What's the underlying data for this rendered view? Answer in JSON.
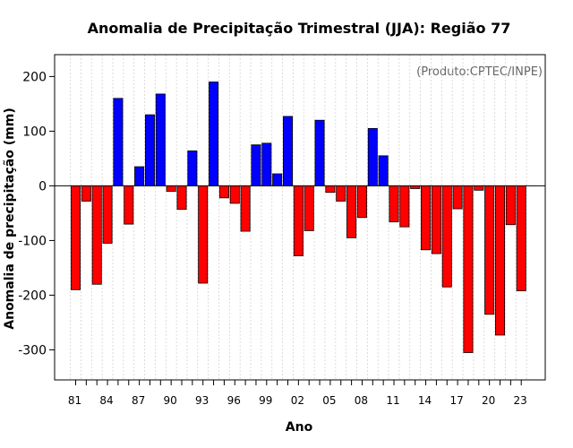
{
  "chart_data": {
    "type": "bar",
    "title": "Anomalia de Precipitação Trimestral (JJA): Região 77",
    "xlabel": "Ano",
    "ylabel": "Anomalia de precipitação (mm)",
    "annotation": "(Produto:CPTEC/INPE)",
    "ylim": [
      -355,
      240
    ],
    "yticks": [
      -300,
      -200,
      -100,
      0,
      100,
      200
    ],
    "grid": "vertical dotted",
    "categories": [
      "81",
      "82",
      "83",
      "84",
      "85",
      "86",
      "87",
      "88",
      "89",
      "90",
      "91",
      "92",
      "93",
      "94",
      "95",
      "96",
      "97",
      "98",
      "99",
      "00",
      "01",
      "02",
      "03",
      "04",
      "05",
      "06",
      "07",
      "08",
      "09",
      "10",
      "11",
      "12",
      "13",
      "14",
      "15",
      "16",
      "17",
      "18",
      "19",
      "20",
      "21",
      "22",
      "23"
    ],
    "tick_labels": [
      "81",
      "84",
      "87",
      "90",
      "93",
      "96",
      "99",
      "02",
      "05",
      "08",
      "11",
      "14",
      "17",
      "20",
      "23"
    ],
    "values": [
      -190,
      -28,
      -180,
      -105,
      160,
      -70,
      35,
      130,
      168,
      -10,
      -43,
      64,
      -178,
      190,
      -22,
      -32,
      -83,
      75,
      78,
      22,
      127,
      -128,
      -82,
      120,
      -12,
      -28,
      -95,
      -58,
      105,
      55,
      -66,
      -75,
      -5,
      -117,
      -124,
      -185,
      -42,
      -305,
      -8,
      -235,
      -273,
      -71,
      -192
    ],
    "colors": {
      "positive": "#0000ff",
      "negative": "#ff0000",
      "outline": "#000000"
    }
  }
}
